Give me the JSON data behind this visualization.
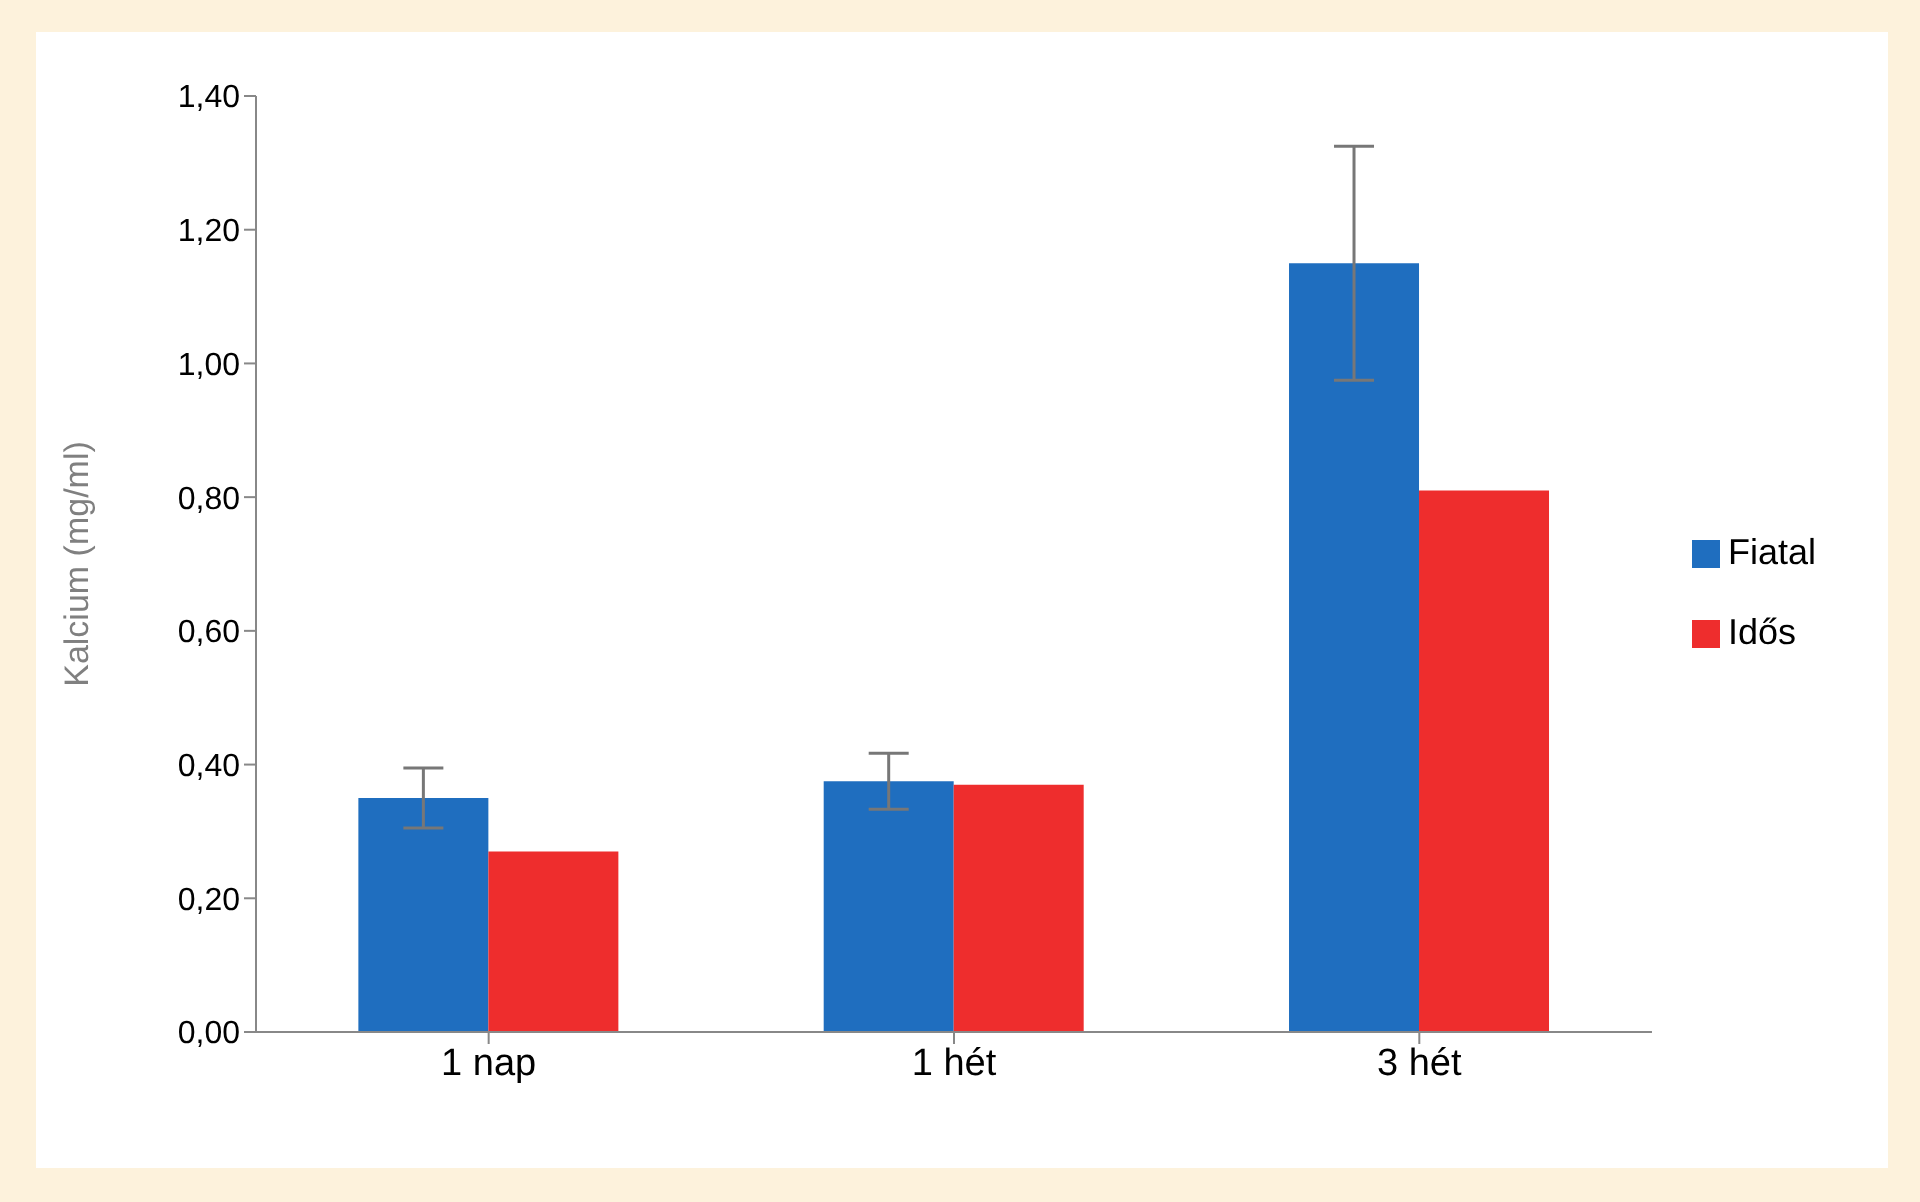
{
  "chart_data": {
    "type": "bar",
    "ylabel": "Kalcium (mg/ml)",
    "categories": [
      "1 nap",
      "1 hét",
      "3 hét"
    ],
    "series": [
      {
        "name": "Fiatal",
        "color": "#1f6ebf",
        "values": [
          0.35,
          0.375,
          1.15
        ],
        "errors": [
          0.045,
          0.042,
          0.175
        ]
      },
      {
        "name": "Idős",
        "color": "#ee2d2d",
        "values": [
          0.27,
          0.37,
          0.81
        ]
      }
    ],
    "ylim": [
      0,
      1.4
    ],
    "yticks": [
      {
        "value": 0,
        "label": "0,00"
      },
      {
        "value": 0.2,
        "label": "0,20"
      },
      {
        "value": 0.4,
        "label": "0,40"
      },
      {
        "value": 0.6,
        "label": "0,60"
      },
      {
        "value": 0.8,
        "label": "0,80"
      },
      {
        "value": 1,
        "label": "1,00"
      },
      {
        "value": 1.2,
        "label": "1,20"
      },
      {
        "value": 1.4,
        "label": "1,40"
      }
    ],
    "grid": false,
    "legend": "right"
  }
}
